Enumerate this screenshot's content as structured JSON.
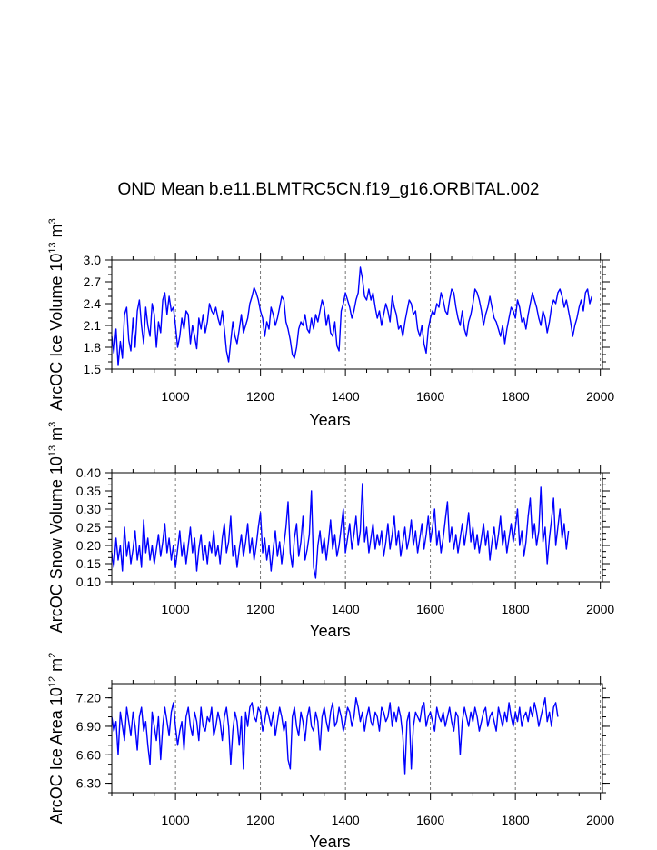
{
  "title": "OND Mean b.e11.BLMTRC5CN.f19_g16.ORBITAL.002",
  "chart_data": [
    {
      "type": "line",
      "id": "ice-volume",
      "title": "",
      "xlabel": "Years",
      "ylabel": "ArcOC Ice Volume 10^13 m^3",
      "ylabel_parts": {
        "base": "ArcOC Ice Volume 10",
        "exp1": "13",
        "unit": " m",
        "exp2": "3"
      },
      "xlim": [
        850,
        2005
      ],
      "ylim": [
        1.5,
        3.0
      ],
      "xticks": [
        1000,
        1200,
        1400,
        1600,
        1800,
        2000
      ],
      "xtick_labels": [
        "1000",
        "1200",
        "1400",
        "1600",
        "1800",
        "2000"
      ],
      "yticks": [
        1.5,
        1.8,
        2.1,
        2.4,
        2.7,
        3.0
      ],
      "ytick_labels": [
        "1.5",
        "1.8",
        "2.1",
        "2.4",
        "2.7",
        "3.0"
      ],
      "grid": "dashed vertical at x ticks",
      "series": [
        {
          "name": "Ice Volume",
          "color": "#0000ff",
          "x_start": 850,
          "x_step": 5,
          "values": [
            1.95,
            1.72,
            2.05,
            1.55,
            1.88,
            1.65,
            2.25,
            2.35,
            1.9,
            1.75,
            2.2,
            1.8,
            2.3,
            2.45,
            2.1,
            1.85,
            2.35,
            2.1,
            1.95,
            2.4,
            2.25,
            1.8,
            2.15,
            2.0,
            2.45,
            2.55,
            2.25,
            2.5,
            2.3,
            2.35,
            2.1,
            1.8,
            1.95,
            2.2,
            2.05,
            2.3,
            2.25,
            1.85,
            2.1,
            1.95,
            1.78,
            2.2,
            2.05,
            2.25,
            2.0,
            2.15,
            2.4,
            2.3,
            2.25,
            2.35,
            2.2,
            2.1,
            2.3,
            2.05,
            1.75,
            1.6,
            1.88,
            2.15,
            1.95,
            1.85,
            2.05,
            2.25,
            2.0,
            2.1,
            2.2,
            2.4,
            2.5,
            2.62,
            2.55,
            2.45,
            2.3,
            2.2,
            1.95,
            2.15,
            2.05,
            2.35,
            2.25,
            2.1,
            2.2,
            2.35,
            2.5,
            2.45,
            2.15,
            2.05,
            1.9,
            1.7,
            1.65,
            1.8,
            2.05,
            2.15,
            2.1,
            2.25,
            2.05,
            2.0,
            2.2,
            2.05,
            2.25,
            2.15,
            2.3,
            2.45,
            2.35,
            2.1,
            2.25,
            2.0,
            1.95,
            2.15,
            1.82,
            1.75,
            2.3,
            2.4,
            2.55,
            2.45,
            2.35,
            2.2,
            2.3,
            2.45,
            2.55,
            2.9,
            2.75,
            2.5,
            2.45,
            2.6,
            2.45,
            2.55,
            2.35,
            2.2,
            2.3,
            2.1,
            2.25,
            2.4,
            2.3,
            2.15,
            2.5,
            2.35,
            2.25,
            2.05,
            2.1,
            1.95,
            2.15,
            2.3,
            2.45,
            2.4,
            2.25,
            2.3,
            2.05,
            1.95,
            2.1,
            1.85,
            1.72,
            2.05,
            2.2,
            2.3,
            2.25,
            2.4,
            2.35,
            2.55,
            2.45,
            2.3,
            2.25,
            2.45,
            2.6,
            2.55,
            2.35,
            2.2,
            2.1,
            2.3,
            2.05,
            1.95,
            2.15,
            2.25,
            2.4,
            2.6,
            2.55,
            2.45,
            2.3,
            2.1,
            2.25,
            2.35,
            2.5,
            2.35,
            2.2,
            2.15,
            2.05,
            1.95,
            2.1,
            1.85,
            2.05,
            2.2,
            2.35,
            2.3,
            2.2,
            2.45,
            2.35,
            2.15,
            2.2,
            2.05,
            2.25,
            2.4,
            2.55,
            2.45,
            2.35,
            2.2,
            2.1,
            2.3,
            2.2,
            2.0,
            2.15,
            2.35,
            2.45,
            2.4,
            2.55,
            2.6,
            2.5,
            2.35,
            2.45,
            2.3,
            2.15,
            1.95,
            2.1,
            2.2,
            2.35,
            2.45,
            2.3,
            2.55,
            2.6,
            2.4,
            2.5
          ]
        }
      ]
    },
    {
      "type": "line",
      "id": "snow-volume",
      "title": "",
      "xlabel": "Years",
      "ylabel": "ArcOC Snow Volume 10^13 m^3",
      "ylabel_parts": {
        "base": "ArcOC Snow Volume 10",
        "exp1": "13",
        "unit": " m",
        "exp2": "3"
      },
      "xlim": [
        850,
        2005
      ],
      "ylim": [
        0.1,
        0.4
      ],
      "xticks": [
        1000,
        1200,
        1400,
        1600,
        1800,
        2000
      ],
      "xtick_labels": [
        "1000",
        "1200",
        "1400",
        "1600",
        "1800",
        "2000"
      ],
      "yticks": [
        0.1,
        0.15,
        0.2,
        0.25,
        0.3,
        0.35,
        0.4
      ],
      "ytick_labels": [
        "0.10",
        "0.15",
        "0.20",
        "0.25",
        "0.30",
        "0.35",
        "0.40"
      ],
      "grid": "dashed vertical at x ticks",
      "series": [
        {
          "name": "Snow Volume",
          "color": "#0000ff",
          "x_start": 850,
          "x_step": 5,
          "values": [
            0.18,
            0.14,
            0.22,
            0.16,
            0.2,
            0.13,
            0.25,
            0.17,
            0.21,
            0.15,
            0.19,
            0.24,
            0.16,
            0.2,
            0.14,
            0.27,
            0.18,
            0.22,
            0.16,
            0.2,
            0.15,
            0.19,
            0.23,
            0.17,
            0.21,
            0.26,
            0.18,
            0.22,
            0.16,
            0.2,
            0.14,
            0.19,
            0.24,
            0.17,
            0.21,
            0.15,
            0.2,
            0.25,
            0.18,
            0.22,
            0.13,
            0.19,
            0.23,
            0.16,
            0.2,
            0.15,
            0.21,
            0.18,
            0.24,
            0.17,
            0.2,
            0.15,
            0.22,
            0.26,
            0.18,
            0.21,
            0.28,
            0.17,
            0.2,
            0.14,
            0.19,
            0.23,
            0.17,
            0.21,
            0.26,
            0.18,
            0.22,
            0.16,
            0.2,
            0.25,
            0.29,
            0.18,
            0.22,
            0.16,
            0.2,
            0.13,
            0.19,
            0.24,
            0.17,
            0.21,
            0.15,
            0.2,
            0.25,
            0.32,
            0.18,
            0.14,
            0.22,
            0.26,
            0.17,
            0.21,
            0.28,
            0.16,
            0.19,
            0.23,
            0.35,
            0.14,
            0.11,
            0.2,
            0.24,
            0.18,
            0.22,
            0.16,
            0.21,
            0.27,
            0.19,
            0.23,
            0.17,
            0.2,
            0.25,
            0.3,
            0.18,
            0.22,
            0.26,
            0.19,
            0.23,
            0.28,
            0.2,
            0.24,
            0.37,
            0.21,
            0.25,
            0.18,
            0.22,
            0.26,
            0.19,
            0.23,
            0.2,
            0.24,
            0.17,
            0.21,
            0.26,
            0.19,
            0.23,
            0.28,
            0.2,
            0.24,
            0.17,
            0.21,
            0.25,
            0.19,
            0.22,
            0.27,
            0.2,
            0.24,
            0.18,
            0.22,
            0.26,
            0.19,
            0.23,
            0.28,
            0.21,
            0.25,
            0.3,
            0.2,
            0.24,
            0.18,
            0.22,
            0.27,
            0.32,
            0.21,
            0.25,
            0.19,
            0.23,
            0.18,
            0.22,
            0.26,
            0.2,
            0.24,
            0.29,
            0.21,
            0.25,
            0.19,
            0.23,
            0.18,
            0.22,
            0.26,
            0.2,
            0.24,
            0.16,
            0.21,
            0.25,
            0.19,
            0.23,
            0.28,
            0.2,
            0.24,
            0.18,
            0.22,
            0.26,
            0.21,
            0.25,
            0.3,
            0.2,
            0.24,
            0.17,
            0.21,
            0.28,
            0.33,
            0.22,
            0.26,
            0.2,
            0.24,
            0.36,
            0.21,
            0.25,
            0.15,
            0.22,
            0.27,
            0.33,
            0.2,
            0.25,
            0.3,
            0.22,
            0.26,
            0.19,
            0.24
          ]
        }
      ]
    },
    {
      "type": "line",
      "id": "ice-area",
      "title": "",
      "xlabel": "Years",
      "ylabel": "ArcOC Ice Area 10^12 m^2",
      "ylabel_parts": {
        "base": "ArcOC Ice Area 10",
        "exp1": "12",
        "unit": " m",
        "exp2": "2"
      },
      "xlim": [
        850,
        2005
      ],
      "ylim": [
        6.2,
        7.35
      ],
      "xticks": [
        1000,
        1200,
        1400,
        1600,
        1800,
        2000
      ],
      "xtick_labels": [
        "1000",
        "1200",
        "1400",
        "1600",
        "1800",
        "2000"
      ],
      "yticks": [
        6.3,
        6.6,
        6.9,
        7.2
      ],
      "ytick_labels": [
        "6.30",
        "6.60",
        "6.90",
        "7.20"
      ],
      "grid": "dashed vertical at x ticks",
      "series": [
        {
          "name": "Ice Area",
          "color": "#0000ff",
          "x_start": 850,
          "x_step": 5,
          "values": [
            7.0,
            6.85,
            6.95,
            6.6,
            7.05,
            6.9,
            6.75,
            7.1,
            6.95,
            6.8,
            7.05,
            6.9,
            6.65,
            7.0,
            7.1,
            6.85,
            6.95,
            6.7,
            6.5,
            7.05,
            6.9,
            6.75,
            7.0,
            6.55,
            6.9,
            7.1,
            6.95,
            6.8,
            7.05,
            7.15,
            6.9,
            6.7,
            6.85,
            6.95,
            6.65,
            7.0,
            7.1,
            6.9,
            6.8,
            7.05,
            6.95,
            6.75,
            7.1,
            6.9,
            6.85,
            7.0,
            6.95,
            7.1,
            6.8,
            6.9,
            7.05,
            6.95,
            6.75,
            7.0,
            7.1,
            6.9,
            6.5,
            6.85,
            7.05,
            6.95,
            6.7,
            7.0,
            6.45,
            7.05,
            6.9,
            7.1,
            7.15,
            7.0,
            6.95,
            7.1,
            7.05,
            6.85,
            6.95,
            7.1,
            7.0,
            6.9,
            7.05,
            6.8,
            6.95,
            7.1,
            7.0,
            6.85,
            6.95,
            6.55,
            6.45,
            7.0,
            7.1,
            6.9,
            6.8,
            7.05,
            6.95,
            6.75,
            7.0,
            7.1,
            6.9,
            6.85,
            7.05,
            6.95,
            6.65,
            7.0,
            7.1,
            6.95,
            6.85,
            7.05,
            7.15,
            6.9,
            6.95,
            7.1,
            7.0,
            6.85,
            6.95,
            7.1,
            7.05,
            6.9,
            7.0,
            7.2,
            7.1,
            6.95,
            7.05,
            6.85,
            7.0,
            7.1,
            6.95,
            6.9,
            7.05,
            7.0,
            6.85,
            7.1,
            7.05,
            6.95,
            7.0,
            7.15,
            6.9,
            7.05,
            6.95,
            7.1,
            7.0,
            6.8,
            6.4,
            6.95,
            7.05,
            6.45,
            6.9,
            7.05,
            7.0,
            6.95,
            7.1,
            7.15,
            6.9,
            7.0,
            7.05,
            6.95,
            6.85,
            7.1,
            7.0,
            6.95,
            7.05,
            6.9,
            7.0,
            7.1,
            6.95,
            6.85,
            7.05,
            7.0,
            6.6,
            6.95,
            7.1,
            7.0,
            6.9,
            7.05,
            6.95,
            7.1,
            7.0,
            6.85,
            6.95,
            7.05,
            7.1,
            6.9,
            7.0,
            7.05,
            6.95,
            6.85,
            7.1,
            7.0,
            6.9,
            7.05,
            6.95,
            7.15,
            7.0,
            6.9,
            7.05,
            6.95,
            7.1,
            6.9,
            7.0,
            7.05,
            6.95,
            7.1,
            7.0,
            7.15,
            7.05,
            6.9,
            7.0,
            7.1,
            7.2,
            6.95,
            7.05,
            6.9,
            7.1,
            7.15,
            7.0
          ]
        }
      ]
    }
  ]
}
